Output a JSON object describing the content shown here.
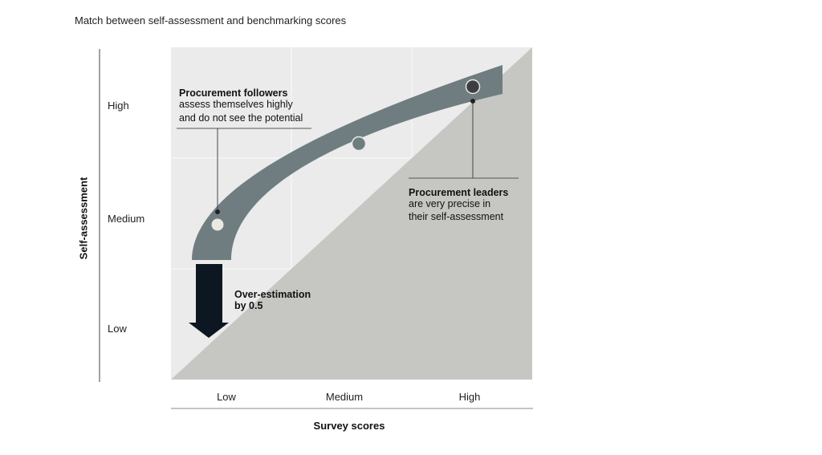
{
  "title": "Match between self-assessment and benchmarking scores",
  "y_axis": {
    "title": "Self-assessment",
    "levels": [
      "High",
      "Medium",
      "Low"
    ]
  },
  "x_axis": {
    "title": "Survey scores",
    "levels": [
      "Low",
      "Medium",
      "High"
    ]
  },
  "annotations": {
    "followers": {
      "heading": "Procurement followers",
      "line1": "assess themselves highly",
      "line2": "and do not see the potential"
    },
    "leaders": {
      "heading": "Procurement leaders",
      "line1": "are very precise in",
      "line2": "their self-assessment"
    },
    "overestimation": {
      "line1": "Over-estimation",
      "line2": "by 0.5"
    }
  },
  "colors": {
    "band": "#6f7d81",
    "panel": "#ebebeb",
    "triangle": "#c6c6c2",
    "arrow": "#0c1722",
    "grid": "#f7f7f7"
  }
}
